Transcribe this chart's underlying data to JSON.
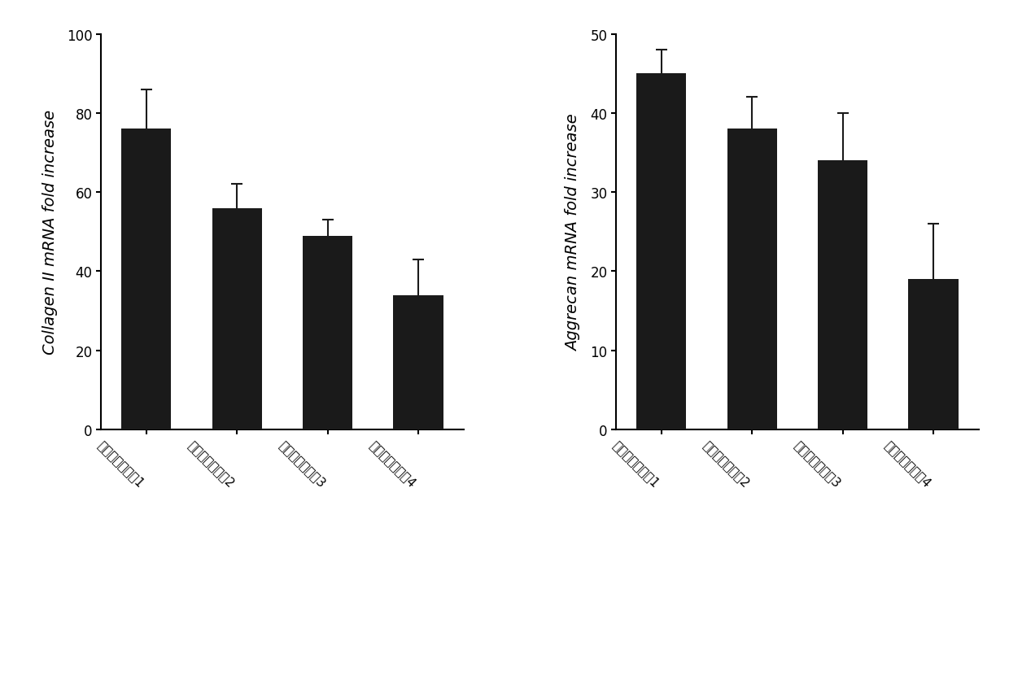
{
  "left": {
    "ylabel": "Collagen II mRNA fold increase",
    "values": [
      76,
      56,
      49,
      34
    ],
    "errors": [
      10,
      6,
      4,
      9
    ],
    "ylim": [
      0,
      100
    ],
    "yticks": [
      0,
      20,
      40,
      60,
      80,
      100
    ]
  },
  "right": {
    "ylabel": "Aggrecan mRNA fold increase",
    "values": [
      45,
      38,
      34,
      19
    ],
    "errors": [
      3,
      4,
      6,
      7
    ],
    "ylim": [
      0,
      50
    ],
    "yticks": [
      0,
      10,
      20,
      30,
      40,
      50
    ]
  },
  "categories": [
    "诱导分化培养基1",
    "诱导分化培养基2",
    "诱导分化培养基3",
    "诱导分化培养基4"
  ],
  "bar_color": "#1a1a1a",
  "error_color": "#1a1a1a",
  "bar_width": 0.55,
  "background_color": "#ffffff",
  "tick_fontsize": 12,
  "ylabel_fontsize": 14,
  "xtick_fontsize": 11,
  "xlabel_rotation": -45
}
